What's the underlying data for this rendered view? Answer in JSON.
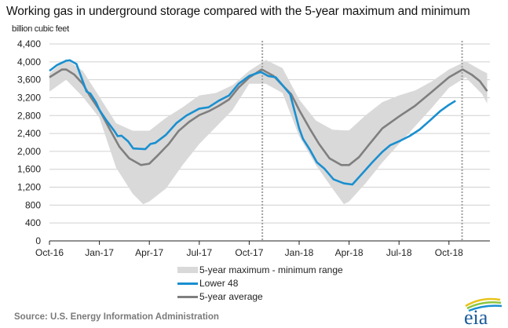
{
  "chart_data": {
    "type": "area",
    "title": "Working gas in underground storage compared with the 5-year maximum and minimum",
    "ylabel": "billion cubic feet",
    "ylim": [
      0,
      4400
    ],
    "yticks": [
      0,
      400,
      800,
      1200,
      1600,
      2000,
      2400,
      2800,
      3200,
      3600,
      4000,
      4400
    ],
    "ytick_labels": [
      "0",
      "400",
      "800",
      "1,200",
      "1,600",
      "2,000",
      "2,400",
      "2,800",
      "3,200",
      "3,600",
      "4,000",
      "4,400"
    ],
    "xlim": [
      "2016-10-01",
      "2018-12-15"
    ],
    "xticks": [
      "2016-10-01",
      "2017-01-01",
      "2017-04-01",
      "2017-07-01",
      "2017-10-01",
      "2018-01-01",
      "2018-04-01",
      "2018-07-01",
      "2018-10-01"
    ],
    "xtick_labels": [
      "Oct-16",
      "Jan-17",
      "Apr-17",
      "Jul-17",
      "Oct-17",
      "Jan-18",
      "Apr-18",
      "Jul-18",
      "Oct-18"
    ],
    "grid": "horizontal",
    "legend_position": "bottom",
    "reference_lines": [
      "2017-10-25",
      "2018-10-25"
    ],
    "series": [
      {
        "name": "5-year maximum - minimum range",
        "kind": "band",
        "color": "#d9d9d9",
        "points": [
          {
            "date": "2016-10-01",
            "max": 3745,
            "min": 3335
          },
          {
            "date": "2016-11-01",
            "max": 4060,
            "min": 3600
          },
          {
            "date": "2016-12-01",
            "max": 3800,
            "min": 3220
          },
          {
            "date": "2017-01-01",
            "max": 3220,
            "min": 2750
          },
          {
            "date": "2017-02-01",
            "max": 2630,
            "min": 1640
          },
          {
            "date": "2017-03-01",
            "max": 2460,
            "min": 1055
          },
          {
            "date": "2017-03-20",
            "max": 2460,
            "min": 820
          },
          {
            "date": "2017-04-01",
            "max": 2460,
            "min": 880
          },
          {
            "date": "2017-05-01",
            "max": 2750,
            "min": 1170
          },
          {
            "date": "2017-06-01",
            "max": 2985,
            "min": 1695
          },
          {
            "date": "2017-07-01",
            "max": 3250,
            "min": 2165
          },
          {
            "date": "2017-08-01",
            "max": 3305,
            "min": 2545
          },
          {
            "date": "2017-09-01",
            "max": 3480,
            "min": 2925
          },
          {
            "date": "2017-10-01",
            "max": 3800,
            "min": 3510
          },
          {
            "date": "2017-11-01",
            "max": 4040,
            "min": 3510
          },
          {
            "date": "2017-12-01",
            "max": 3860,
            "min": 3305
          },
          {
            "date": "2018-01-01",
            "max": 3160,
            "min": 2340
          },
          {
            "date": "2018-02-01",
            "max": 2690,
            "min": 1695
          },
          {
            "date": "2018-03-01",
            "max": 2485,
            "min": 1170
          },
          {
            "date": "2018-03-22",
            "max": 2470,
            "min": 820
          },
          {
            "date": "2018-04-01",
            "max": 2470,
            "min": 880
          },
          {
            "date": "2018-05-01",
            "max": 2810,
            "min": 1290
          },
          {
            "date": "2018-06-01",
            "max": 3100,
            "min": 1755
          },
          {
            "date": "2018-07-01",
            "max": 3250,
            "min": 2165
          },
          {
            "date": "2018-08-01",
            "max": 3365,
            "min": 2575
          },
          {
            "date": "2018-09-01",
            "max": 3570,
            "min": 2985
          },
          {
            "date": "2018-10-01",
            "max": 3830,
            "min": 3420
          },
          {
            "date": "2018-11-01",
            "max": 4010,
            "min": 3655
          },
          {
            "date": "2018-12-01",
            "max": 3800,
            "min": 3275
          },
          {
            "date": "2018-12-10",
            "max": 3745,
            "min": 3070
          }
        ]
      },
      {
        "name": "Lower 48",
        "kind": "line",
        "color": "#1a8fd0",
        "points": [
          [
            "2016-10-01",
            3800
          ],
          [
            "2016-10-15",
            3930
          ],
          [
            "2016-11-01",
            4025
          ],
          [
            "2016-11-08",
            4035
          ],
          [
            "2016-11-20",
            3950
          ],
          [
            "2016-12-08",
            3335
          ],
          [
            "2016-12-15",
            3290
          ],
          [
            "2016-12-25",
            3100
          ],
          [
            "2017-01-01",
            2925
          ],
          [
            "2017-01-14",
            2690
          ],
          [
            "2017-01-28",
            2460
          ],
          [
            "2017-02-04",
            2340
          ],
          [
            "2017-02-11",
            2350
          ],
          [
            "2017-02-23",
            2225
          ],
          [
            "2017-03-02",
            2065
          ],
          [
            "2017-03-24",
            2050
          ],
          [
            "2017-04-03",
            2165
          ],
          [
            "2017-04-12",
            2190
          ],
          [
            "2017-05-01",
            2370
          ],
          [
            "2017-05-20",
            2630
          ],
          [
            "2017-06-08",
            2800
          ],
          [
            "2017-07-01",
            2955
          ],
          [
            "2017-07-18",
            2985
          ],
          [
            "2017-08-06",
            3130
          ],
          [
            "2017-08-25",
            3250
          ],
          [
            "2017-09-12",
            3510
          ],
          [
            "2017-10-01",
            3685
          ],
          [
            "2017-10-22",
            3775
          ],
          [
            "2017-11-05",
            3685
          ],
          [
            "2017-11-19",
            3655
          ],
          [
            "2017-12-03",
            3450
          ],
          [
            "2017-12-15",
            3275
          ],
          [
            "2017-12-25",
            2810
          ],
          [
            "2018-01-01",
            2515
          ],
          [
            "2018-01-08",
            2280
          ],
          [
            "2018-01-20",
            2050
          ],
          [
            "2018-02-03",
            1755
          ],
          [
            "2018-02-17",
            1610
          ],
          [
            "2018-03-03",
            1375
          ],
          [
            "2018-03-22",
            1285
          ],
          [
            "2018-04-07",
            1260
          ],
          [
            "2018-04-24",
            1490
          ],
          [
            "2018-05-13",
            1755
          ],
          [
            "2018-06-01",
            1990
          ],
          [
            "2018-06-15",
            2135
          ],
          [
            "2018-07-01",
            2225
          ],
          [
            "2018-07-20",
            2340
          ],
          [
            "2018-08-08",
            2485
          ],
          [
            "2018-08-27",
            2690
          ],
          [
            "2018-09-15",
            2895
          ],
          [
            "2018-10-01",
            3040
          ],
          [
            "2018-10-13",
            3130
          ]
        ]
      },
      {
        "name": "5-year average",
        "kind": "line",
        "color": "#7f7f7f",
        "points": [
          [
            "2016-10-01",
            3655
          ],
          [
            "2016-10-24",
            3830
          ],
          [
            "2016-11-01",
            3830
          ],
          [
            "2016-11-16",
            3715
          ],
          [
            "2016-12-01",
            3510
          ],
          [
            "2016-12-15",
            3220
          ],
          [
            "2017-01-01",
            2925
          ],
          [
            "2017-01-19",
            2515
          ],
          [
            "2017-02-07",
            2105
          ],
          [
            "2017-02-25",
            1845
          ],
          [
            "2017-03-16",
            1695
          ],
          [
            "2017-04-01",
            1725
          ],
          [
            "2017-04-18",
            1930
          ],
          [
            "2017-05-06",
            2165
          ],
          [
            "2017-05-24",
            2455
          ],
          [
            "2017-06-13",
            2660
          ],
          [
            "2017-07-01",
            2810
          ],
          [
            "2017-07-18",
            2895
          ],
          [
            "2017-08-06",
            3015
          ],
          [
            "2017-08-25",
            3160
          ],
          [
            "2017-09-12",
            3425
          ],
          [
            "2017-10-01",
            3650
          ],
          [
            "2017-10-24",
            3830
          ],
          [
            "2017-11-15",
            3685
          ],
          [
            "2017-12-03",
            3450
          ],
          [
            "2017-12-17",
            3275
          ],
          [
            "2018-01-01",
            2925
          ],
          [
            "2018-01-20",
            2515
          ],
          [
            "2018-02-07",
            2165
          ],
          [
            "2018-02-26",
            1845
          ],
          [
            "2018-03-17",
            1695
          ],
          [
            "2018-04-01",
            1695
          ],
          [
            "2018-04-19",
            1870
          ],
          [
            "2018-05-08",
            2165
          ],
          [
            "2018-06-01",
            2515
          ],
          [
            "2018-07-01",
            2780
          ],
          [
            "2018-07-30",
            3015
          ],
          [
            "2018-08-28",
            3305
          ],
          [
            "2018-10-01",
            3655
          ],
          [
            "2018-10-26",
            3830
          ],
          [
            "2018-11-12",
            3715
          ],
          [
            "2018-11-27",
            3570
          ],
          [
            "2018-12-10",
            3345
          ]
        ]
      }
    ]
  },
  "source": "Source:  U.S. Energy Information Administration",
  "logo_text": "eia"
}
